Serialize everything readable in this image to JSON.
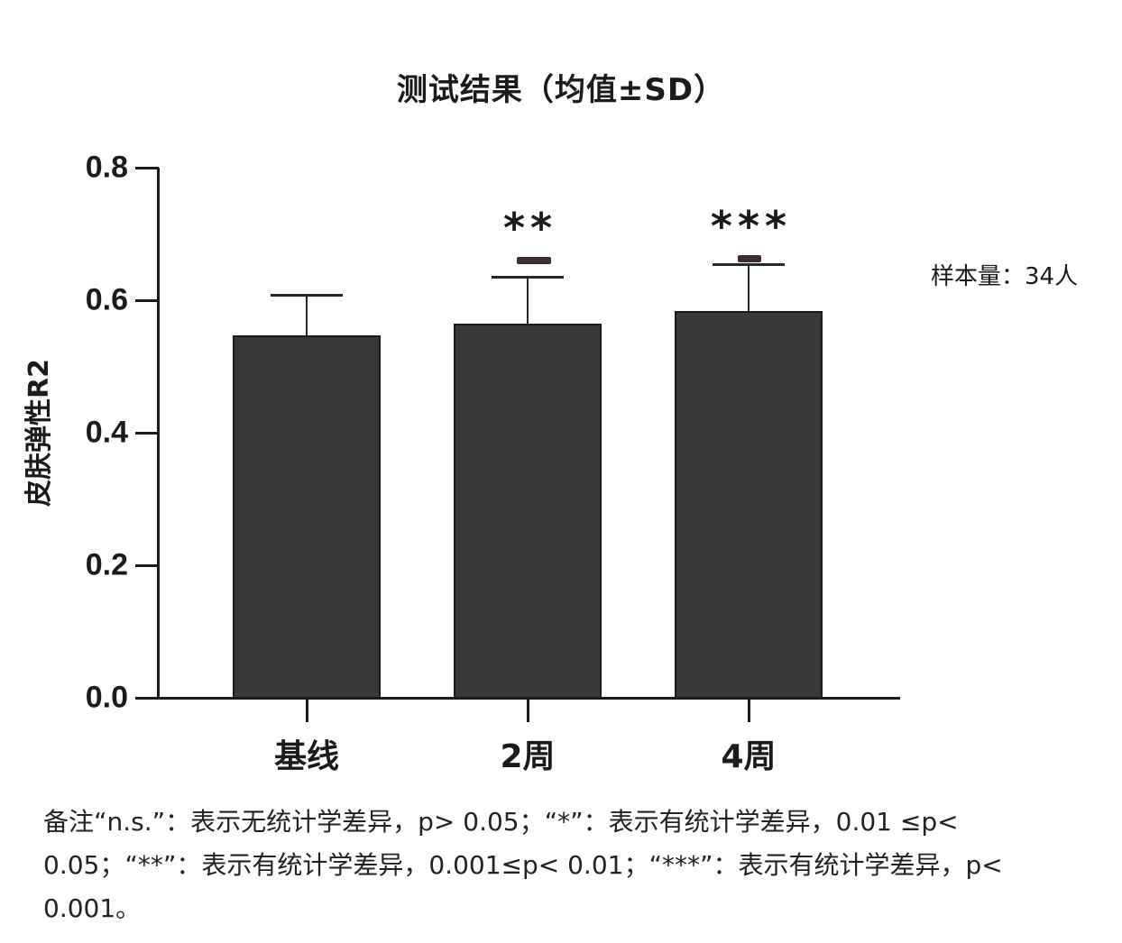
{
  "chart_data": {
    "type": "bar",
    "title": "测试结果（均值±SD）",
    "xlabel": "",
    "ylabel": "皮肤弹性R2",
    "categories": [
      "基线",
      "2周",
      "4周"
    ],
    "values": [
      0.547,
      0.565,
      0.584
    ],
    "error_sd": [
      0.061,
      0.07,
      0.07
    ],
    "significance": [
      "",
      "**",
      "***"
    ],
    "ylim": [
      0.0,
      0.8
    ],
    "yticks": [
      "0.0",
      "0.2",
      "0.4",
      "0.6",
      "0.8"
    ],
    "grid": false,
    "legend": null,
    "bar_color": "#3a3839",
    "annotations": [
      "样本量：34人"
    ]
  },
  "title": "测试结果（均值±SD）",
  "ylabel": "皮肤弹性R2",
  "yticks": [
    "0.0",
    "0.2",
    "0.4",
    "0.6",
    "0.8"
  ],
  "categories": [
    "基线",
    "2周",
    "4周"
  ],
  "significance": [
    "",
    "**",
    "***"
  ],
  "sample_size": "样本量：34人",
  "note": "备注“n.s.”：表示无统计学差异，p> 0.05；“*”：表示有统计学差异，0.01 ≤p< 0.05；“**”：表示有统计学差异，0.001≤p< 0.01；“***”：表示有统计学差异，p< 0.001。"
}
